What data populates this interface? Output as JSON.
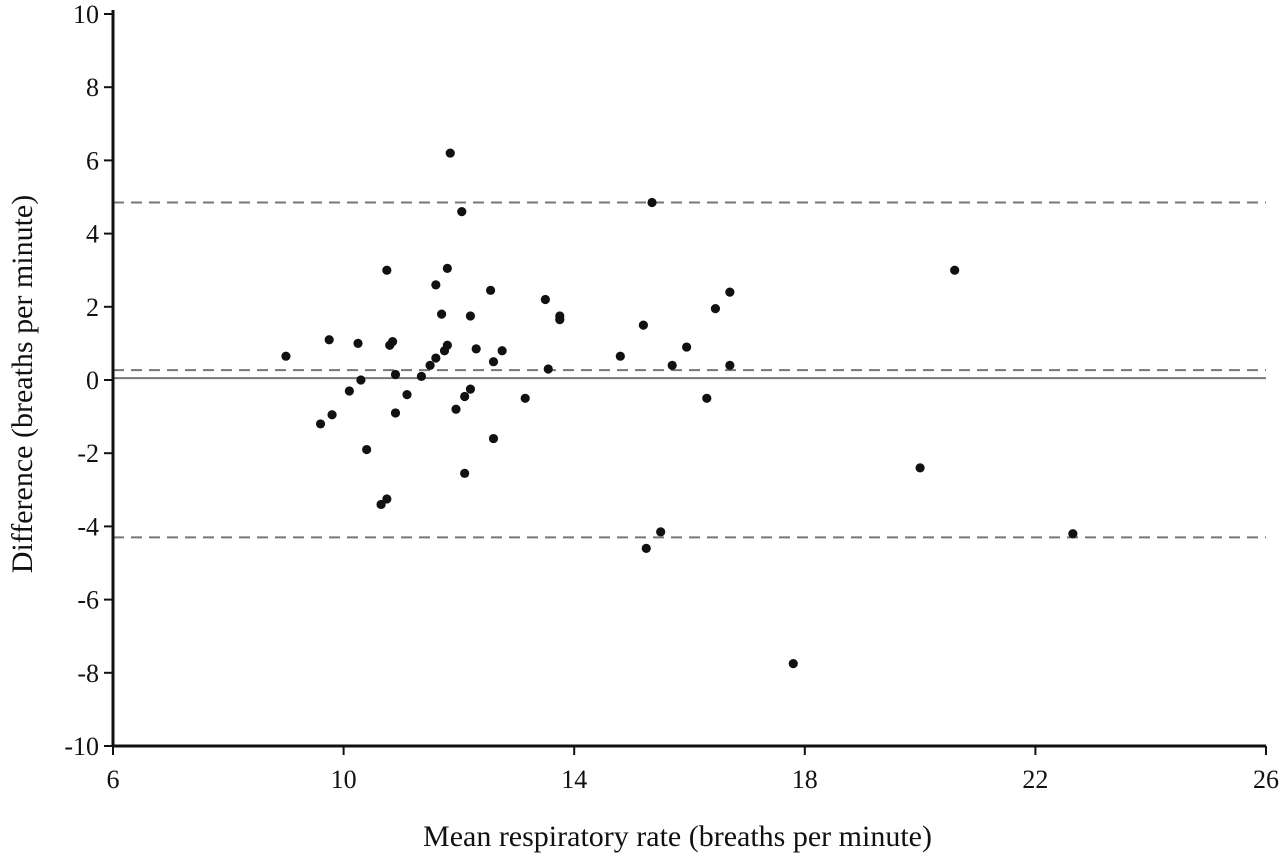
{
  "chart_data": {
    "type": "scatter",
    "title": "",
    "xlabel": "Mean respiratory rate (breaths per minute)",
    "ylabel": "Difference (breaths per minute)",
    "xlim": [
      6,
      26
    ],
    "ylim": [
      -10,
      10
    ],
    "xticks": [
      6,
      10,
      14,
      18,
      22,
      26
    ],
    "yticks": [
      10,
      8,
      6,
      4,
      2,
      0,
      -2,
      -4,
      -6,
      -8,
      -10
    ],
    "grid": false,
    "legend": "none",
    "reference_lines": [
      {
        "kind": "mean-difference",
        "y": 0.27,
        "style": "dashed"
      },
      {
        "kind": "upper-limit-of-agreement",
        "y": 4.85,
        "style": "dashed"
      },
      {
        "kind": "lower-limit-of-agreement",
        "y": -4.3,
        "style": "dashed"
      },
      {
        "kind": "zero-line",
        "y": 0.05,
        "style": "solid"
      }
    ],
    "colors": {
      "points": "#111111",
      "axis": "#111111",
      "reference": "#777777"
    },
    "series": [
      {
        "points": [
          {
            "x": 9.0,
            "y": 0.65
          },
          {
            "x": 9.6,
            "y": -1.2
          },
          {
            "x": 9.75,
            "y": 1.1
          },
          {
            "x": 9.8,
            "y": -0.95
          },
          {
            "x": 10.1,
            "y": -0.3
          },
          {
            "x": 10.25,
            "y": 1.0
          },
          {
            "x": 10.3,
            "y": 0.0
          },
          {
            "x": 10.4,
            "y": -1.9
          },
          {
            "x": 10.65,
            "y": -3.4
          },
          {
            "x": 10.75,
            "y": -3.25
          },
          {
            "x": 10.75,
            "y": 3.0
          },
          {
            "x": 10.8,
            "y": 0.95
          },
          {
            "x": 10.85,
            "y": 1.05
          },
          {
            "x": 10.9,
            "y": 0.15
          },
          {
            "x": 10.9,
            "y": -0.9
          },
          {
            "x": 11.1,
            "y": -0.4
          },
          {
            "x": 11.35,
            "y": 0.1
          },
          {
            "x": 11.5,
            "y": 0.4
          },
          {
            "x": 11.6,
            "y": 2.6
          },
          {
            "x": 11.6,
            "y": 0.6
          },
          {
            "x": 11.7,
            "y": 1.8
          },
          {
            "x": 11.75,
            "y": 0.8
          },
          {
            "x": 11.8,
            "y": 3.05
          },
          {
            "x": 11.8,
            "y": 0.95
          },
          {
            "x": 11.85,
            "y": 6.2
          },
          {
            "x": 11.95,
            "y": -0.8
          },
          {
            "x": 12.05,
            "y": 4.6
          },
          {
            "x": 12.1,
            "y": -2.55
          },
          {
            "x": 12.1,
            "y": -0.45
          },
          {
            "x": 12.2,
            "y": 1.75
          },
          {
            "x": 12.2,
            "y": -0.25
          },
          {
            "x": 12.3,
            "y": 0.85
          },
          {
            "x": 12.55,
            "y": 2.45
          },
          {
            "x": 12.6,
            "y": 0.5
          },
          {
            "x": 12.6,
            "y": -1.6
          },
          {
            "x": 12.75,
            "y": 0.8
          },
          {
            "x": 13.15,
            "y": -0.5
          },
          {
            "x": 13.5,
            "y": 2.2
          },
          {
            "x": 13.55,
            "y": 0.3
          },
          {
            "x": 13.75,
            "y": 1.65
          },
          {
            "x": 13.75,
            "y": 1.75
          },
          {
            "x": 14.8,
            "y": 0.65
          },
          {
            "x": 15.2,
            "y": 1.5
          },
          {
            "x": 15.25,
            "y": -4.6
          },
          {
            "x": 15.35,
            "y": 4.85
          },
          {
            "x": 15.5,
            "y": -4.15
          },
          {
            "x": 15.7,
            "y": 0.4
          },
          {
            "x": 15.95,
            "y": 0.9
          },
          {
            "x": 16.3,
            "y": -0.5
          },
          {
            "x": 16.45,
            "y": 1.95
          },
          {
            "x": 16.7,
            "y": 2.4
          },
          {
            "x": 16.7,
            "y": 0.4
          },
          {
            "x": 17.8,
            "y": -7.75
          },
          {
            "x": 20.0,
            "y": -2.4
          },
          {
            "x": 20.6,
            "y": 3.0
          },
          {
            "x": 22.65,
            "y": -4.2
          }
        ]
      }
    ]
  }
}
